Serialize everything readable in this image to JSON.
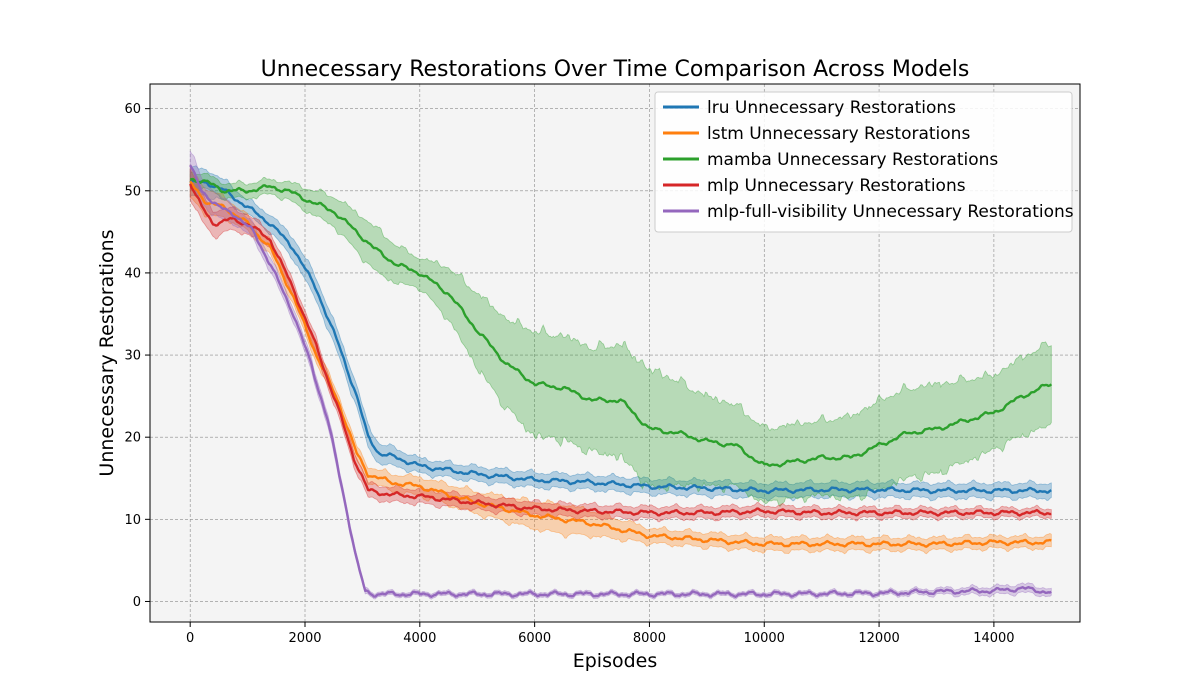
{
  "chart_data": {
    "type": "line",
    "title": "Unnecessary Restorations Over Time Comparison Across Models",
    "xlabel": "Episodes",
    "ylabel": "Unnecessary Restorations",
    "xlim": [
      -700,
      15500
    ],
    "ylim": [
      -2.5,
      63
    ],
    "x_ticks": [
      0,
      2000,
      4000,
      6000,
      8000,
      10000,
      12000,
      14000
    ],
    "y_ticks": [
      0,
      10,
      20,
      30,
      40,
      50,
      60
    ],
    "grid": true,
    "legend_position": "top-right",
    "background": "#f4f4f4",
    "series": [
      {
        "name": "lru Unnecessary Restorations",
        "color": "#1f77b4",
        "points": [
          [
            0,
            51
          ],
          [
            300,
            51
          ],
          [
            600,
            50
          ],
          [
            1000,
            48
          ],
          [
            1400,
            46
          ],
          [
            1800,
            43
          ],
          [
            2200,
            38
          ],
          [
            2600,
            31
          ],
          [
            2900,
            25
          ],
          [
            3100,
            20
          ],
          [
            3300,
            18
          ],
          [
            3600,
            17.5
          ],
          [
            4000,
            16.5
          ],
          [
            5000,
            15.5
          ],
          [
            6000,
            14.8
          ],
          [
            7000,
            14.5
          ],
          [
            8000,
            14
          ],
          [
            9000,
            13.8
          ],
          [
            10000,
            13.5
          ],
          [
            11000,
            13.6
          ],
          [
            12000,
            13.6
          ],
          [
            13000,
            13.5
          ],
          [
            14000,
            13.5
          ],
          [
            15000,
            13.5
          ]
        ],
        "spread": [
          [
            0,
            2
          ],
          [
            1000,
            1
          ],
          [
            2000,
            1.5
          ],
          [
            3000,
            1.5
          ],
          [
            4000,
            1
          ],
          [
            15000,
            1
          ]
        ]
      },
      {
        "name": "lstm Unnecessary Restorations",
        "color": "#ff7f0e",
        "points": [
          [
            0,
            51
          ],
          [
            300,
            48.5
          ],
          [
            600,
            48
          ],
          [
            1000,
            46
          ],
          [
            1400,
            43
          ],
          [
            1800,
            37
          ],
          [
            2200,
            30
          ],
          [
            2600,
            24
          ],
          [
            2900,
            18
          ],
          [
            3100,
            15.5
          ],
          [
            3500,
            14.5
          ],
          [
            4000,
            14
          ],
          [
            5000,
            12
          ],
          [
            6000,
            10.5
          ],
          [
            7000,
            9.5
          ],
          [
            8000,
            8
          ],
          [
            9000,
            7.5
          ],
          [
            10000,
            7
          ],
          [
            11000,
            7
          ],
          [
            12000,
            7
          ],
          [
            13000,
            7
          ],
          [
            14000,
            7.2
          ],
          [
            15000,
            7.2
          ]
        ],
        "spread": [
          [
            0,
            2
          ],
          [
            1000,
            1
          ],
          [
            2000,
            1
          ],
          [
            3000,
            1
          ],
          [
            5000,
            1.5
          ],
          [
            6500,
            2
          ],
          [
            8000,
            1
          ],
          [
            15000,
            0.8
          ]
        ]
      },
      {
        "name": "mamba Unnecessary Restorations",
        "color": "#2ca02c",
        "points": [
          [
            0,
            51.5
          ],
          [
            300,
            51
          ],
          [
            600,
            50
          ],
          [
            1000,
            50
          ],
          [
            1400,
            50.5
          ],
          [
            1700,
            50
          ],
          [
            2000,
            49
          ],
          [
            2500,
            47.5
          ],
          [
            2900,
            45
          ],
          [
            3200,
            43
          ],
          [
            3600,
            41
          ],
          [
            4000,
            40
          ],
          [
            4500,
            37.5
          ],
          [
            5000,
            33
          ],
          [
            5500,
            29
          ],
          [
            6000,
            26.5
          ],
          [
            6500,
            26
          ],
          [
            7000,
            24.5
          ],
          [
            7500,
            24.5
          ],
          [
            8000,
            21
          ],
          [
            8500,
            20.5
          ],
          [
            9000,
            19.5
          ],
          [
            9500,
            19
          ],
          [
            10000,
            16.5
          ],
          [
            10500,
            17
          ],
          [
            11000,
            17.5
          ],
          [
            11500,
            17.5
          ],
          [
            12000,
            19
          ],
          [
            12500,
            20.5
          ],
          [
            13000,
            21
          ],
          [
            13500,
            22
          ],
          [
            14000,
            23
          ],
          [
            14500,
            25
          ],
          [
            15000,
            26.5
          ]
        ],
        "spread": [
          [
            0,
            1
          ],
          [
            1500,
            1
          ],
          [
            2500,
            2
          ],
          [
            3200,
            3
          ],
          [
            4000,
            2
          ],
          [
            5000,
            5
          ],
          [
            6000,
            7
          ],
          [
            7000,
            7
          ],
          [
            8000,
            8
          ],
          [
            9000,
            6
          ],
          [
            10000,
            5
          ],
          [
            11000,
            5
          ],
          [
            12000,
            6
          ],
          [
            13000,
            6
          ],
          [
            14000,
            5
          ],
          [
            15000,
            5.5
          ]
        ]
      },
      {
        "name": "mlp Unnecessary Restorations",
        "color": "#d62728",
        "points": [
          [
            0,
            51
          ],
          [
            200,
            48
          ],
          [
            400,
            46
          ],
          [
            700,
            46.5
          ],
          [
            1000,
            46
          ],
          [
            1400,
            44
          ],
          [
            1800,
            38
          ],
          [
            2200,
            31
          ],
          [
            2600,
            23
          ],
          [
            2850,
            17.5
          ],
          [
            3100,
            13.5
          ],
          [
            3500,
            13
          ],
          [
            4000,
            12.8
          ],
          [
            5000,
            12
          ],
          [
            6000,
            11.3
          ],
          [
            7000,
            11
          ],
          [
            8000,
            10.8
          ],
          [
            9000,
            10.8
          ],
          [
            10000,
            11
          ],
          [
            11000,
            10.8
          ],
          [
            12000,
            10.8
          ],
          [
            13000,
            10.8
          ],
          [
            14000,
            10.8
          ],
          [
            15000,
            10.8
          ]
        ],
        "spread": [
          [
            0,
            2
          ],
          [
            700,
            1.5
          ],
          [
            1500,
            1
          ],
          [
            3000,
            1
          ],
          [
            15000,
            0.6
          ]
        ]
      },
      {
        "name": "mlp-full-visibility Unnecessary Restorations",
        "color": "#9467bd",
        "points": [
          [
            0,
            53
          ],
          [
            200,
            50
          ],
          [
            500,
            48
          ],
          [
            800,
            47
          ],
          [
            1100,
            45
          ],
          [
            1400,
            41
          ],
          [
            1800,
            35
          ],
          [
            2100,
            29
          ],
          [
            2400,
            22
          ],
          [
            2700,
            12
          ],
          [
            2900,
            5
          ],
          [
            3050,
            1.2
          ],
          [
            3200,
            0.9
          ],
          [
            4000,
            0.9
          ],
          [
            6000,
            0.9
          ],
          [
            8000,
            0.9
          ],
          [
            10000,
            0.9
          ],
          [
            12000,
            1
          ],
          [
            13000,
            1.2
          ],
          [
            14000,
            1.3
          ],
          [
            14500,
            1.6
          ],
          [
            15000,
            1.1
          ]
        ],
        "spread": [
          [
            0,
            2
          ],
          [
            1000,
            1
          ],
          [
            2500,
            0.8
          ],
          [
            3200,
            0.3
          ],
          [
            12000,
            0.3
          ],
          [
            14500,
            0.6
          ],
          [
            15000,
            0.5
          ]
        ]
      }
    ]
  }
}
